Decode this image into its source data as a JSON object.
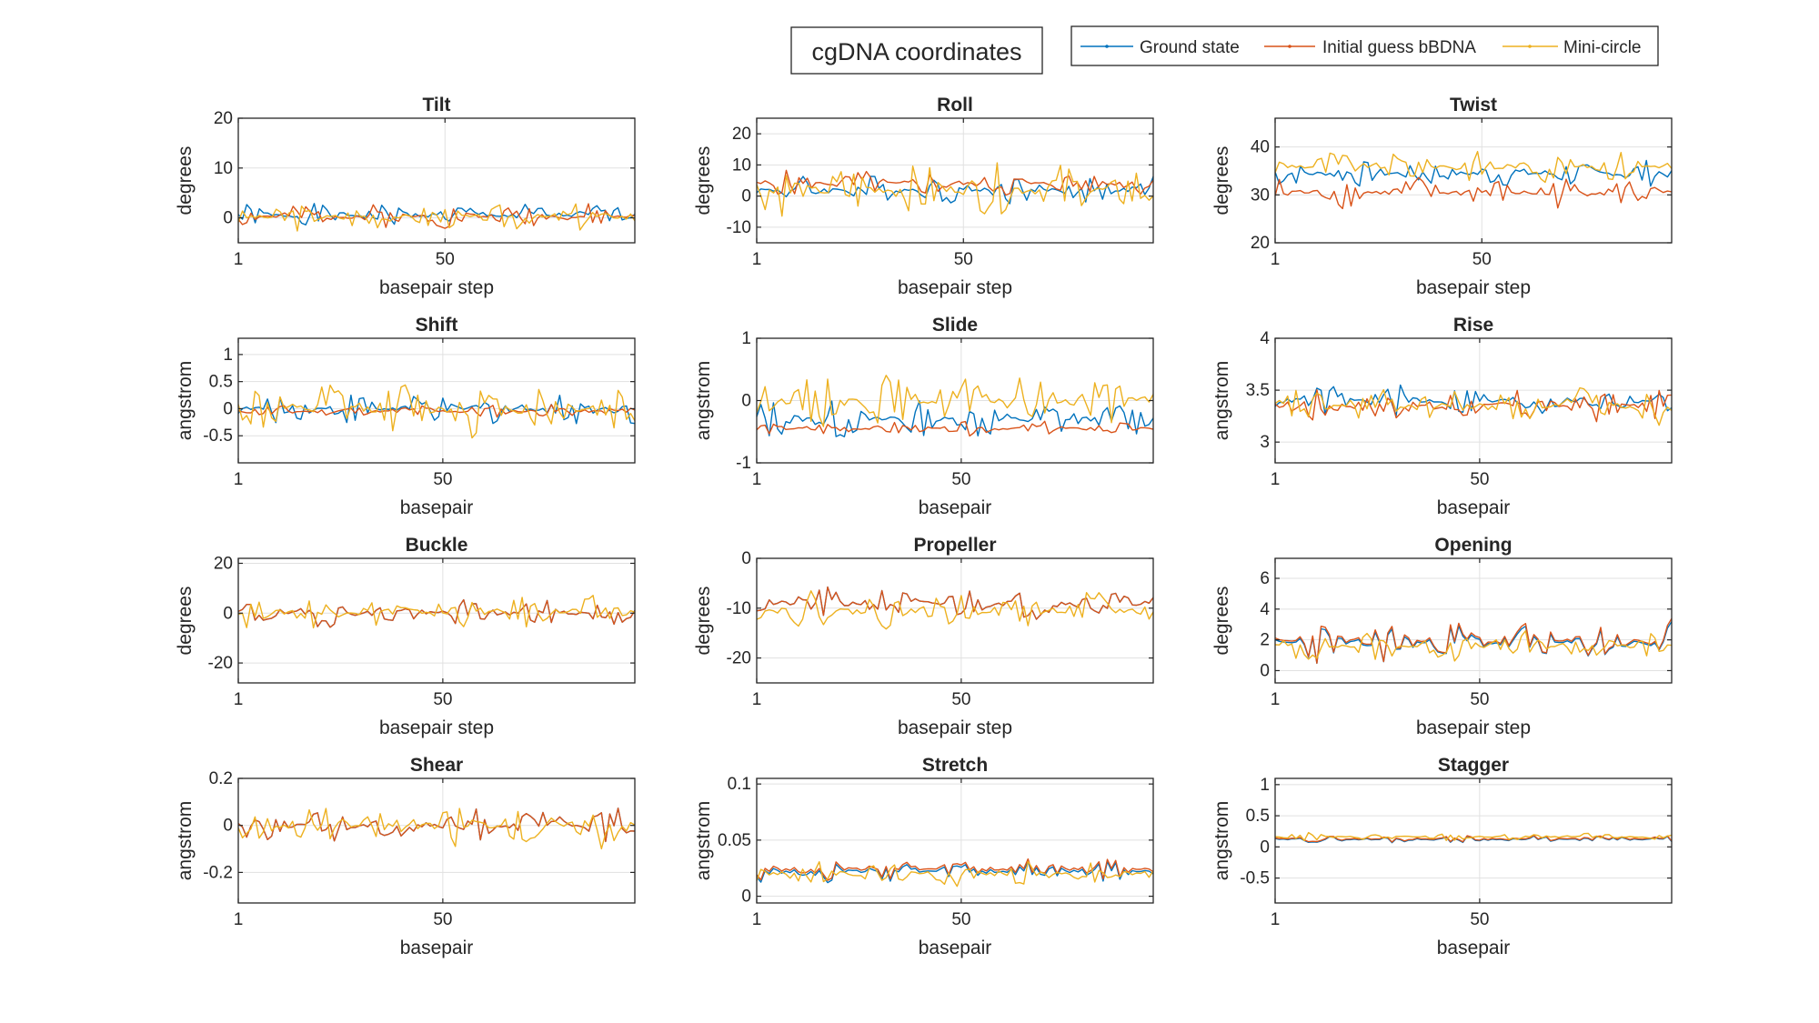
{
  "figure": {
    "title": "cgDNA coordinates"
  },
  "legend": [
    {
      "name": "Ground state",
      "color": "#0072BD"
    },
    {
      "name": "Initial guess bBDNA",
      "color": "#D95319"
    },
    {
      "name": "Mini-circle",
      "color": "#EDB120"
    }
  ],
  "chart_data": [
    {
      "type": "line",
      "title": "Tilt",
      "xlabel": "basepair step",
      "ylabel": "degrees",
      "xlim": [
        1,
        95
      ],
      "ylim": [
        -5,
        20
      ],
      "yticks": [
        0,
        10,
        20
      ],
      "xticks": [
        1,
        50
      ],
      "grid": true,
      "legend": "none"
    },
    {
      "type": "line",
      "title": "Roll",
      "xlabel": "basepair step",
      "ylabel": "degrees",
      "xlim": [
        1,
        95
      ],
      "ylim": [
        -15,
        25
      ],
      "yticks": [
        -10,
        0,
        10,
        20
      ],
      "xticks": [
        1,
        50
      ],
      "grid": true,
      "legend": "none"
    },
    {
      "type": "line",
      "title": "Twist",
      "xlabel": "basepair step",
      "ylabel": "degrees",
      "xlim": [
        1,
        95
      ],
      "ylim": [
        20,
        46
      ],
      "yticks": [
        20,
        30,
        40
      ],
      "xticks": [
        1,
        50
      ],
      "grid": true,
      "legend": "none"
    },
    {
      "type": "line",
      "title": "Shift",
      "xlabel": "basepair",
      "ylabel": "angstrom",
      "xlim": [
        1,
        96
      ],
      "ylim": [
        -1,
        1.3
      ],
      "yticks": [
        -0.5,
        0,
        0.5,
        1
      ],
      "xticks": [
        1,
        50
      ],
      "grid": true,
      "legend": "none"
    },
    {
      "type": "line",
      "title": "Slide",
      "xlabel": "basepair",
      "ylabel": "angstrom",
      "xlim": [
        1,
        96
      ],
      "ylim": [
        -1,
        1
      ],
      "yticks": [
        -1,
        0,
        1
      ],
      "xticks": [
        1,
        50
      ],
      "grid": true,
      "legend": "none"
    },
    {
      "type": "line",
      "title": "Rise",
      "xlabel": "basepair",
      "ylabel": "angstrom",
      "xlim": [
        1,
        96
      ],
      "ylim": [
        2.8,
        4
      ],
      "yticks": [
        3,
        3.5,
        4
      ],
      "xticks": [
        1,
        50
      ],
      "grid": true,
      "legend": "none"
    },
    {
      "type": "line",
      "title": "Buckle",
      "xlabel": "basepair step",
      "ylabel": "degrees",
      "xlim": [
        1,
        96
      ],
      "ylim": [
        -28,
        22
      ],
      "yticks": [
        -20,
        0,
        20
      ],
      "xticks": [
        1,
        50
      ],
      "grid": true,
      "legend": "none"
    },
    {
      "type": "line",
      "title": "Propeller",
      "xlabel": "basepair step",
      "ylabel": "degrees",
      "xlim": [
        1,
        96
      ],
      "ylim": [
        -25,
        0
      ],
      "yticks": [
        -20,
        -10,
        0
      ],
      "xticks": [
        1,
        50
      ],
      "grid": true,
      "legend": "none"
    },
    {
      "type": "line",
      "title": "Opening",
      "xlabel": "basepair step",
      "ylabel": "degrees",
      "xlim": [
        1,
        96
      ],
      "ylim": [
        -0.8,
        7.3
      ],
      "yticks": [
        0,
        2,
        4,
        6
      ],
      "xticks": [
        1,
        50
      ],
      "grid": true,
      "legend": "none"
    },
    {
      "type": "line",
      "title": "Shear",
      "xlabel": "basepair",
      "ylabel": "angstrom",
      "xlim": [
        1,
        96
      ],
      "ylim": [
        -0.33,
        0.2
      ],
      "yticks": [
        -0.2,
        0,
        0.2
      ],
      "xticks": [
        1,
        50
      ],
      "grid": true,
      "legend": "none"
    },
    {
      "type": "line",
      "title": "Stretch",
      "xlabel": "basepair",
      "ylabel": "angstrom",
      "xlim": [
        1,
        96
      ],
      "ylim": [
        -0.006,
        0.105
      ],
      "yticks": [
        0,
        0.05,
        0.1
      ],
      "xticks": [
        1,
        50
      ],
      "grid": true,
      "legend": "none"
    },
    {
      "type": "line",
      "title": "Stagger",
      "xlabel": "basepair",
      "ylabel": "angstrom",
      "xlim": [
        1,
        96
      ],
      "ylim": [
        -0.9,
        1.1
      ],
      "yticks": [
        -0.5,
        0,
        0.5,
        1
      ],
      "xticks": [
        1,
        50
      ],
      "grid": true,
      "legend": "none"
    }
  ]
}
